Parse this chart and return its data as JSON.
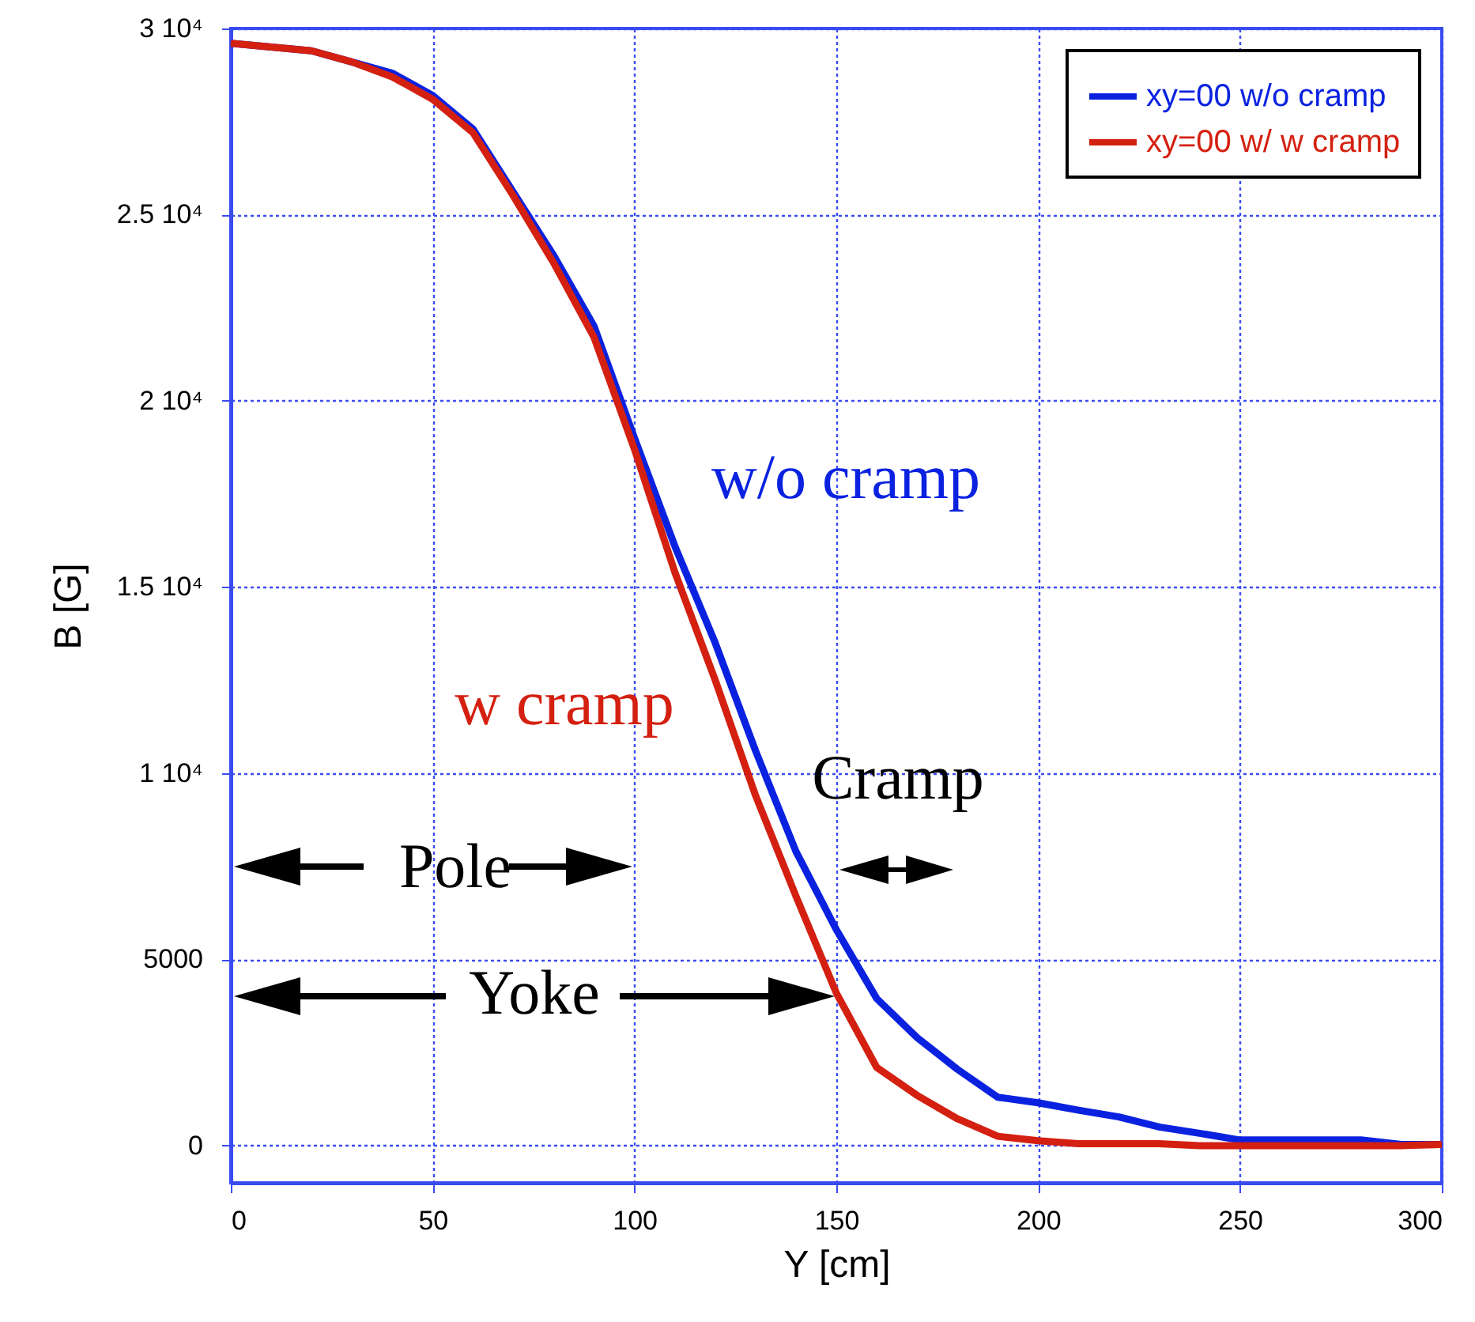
{
  "chart_data": {
    "type": "line",
    "xlabel": "Y [cm]",
    "ylabel": "B [G]",
    "x": [
      0,
      20,
      30,
      40,
      50,
      60,
      70,
      80,
      90,
      100,
      110,
      120,
      130,
      140,
      150,
      160,
      170,
      180,
      190,
      200,
      210,
      220,
      230,
      240,
      250,
      260,
      270,
      280,
      290,
      300
    ],
    "series": [
      {
        "name": "xy=00 w/o cramp",
        "color": "#0a22e0",
        "values": [
          29600,
          29400,
          29100,
          28800,
          28200,
          27300,
          25600,
          23900,
          22000,
          19000,
          16100,
          13500,
          10600,
          7900,
          5800,
          3950,
          2900,
          2050,
          1300,
          1150,
          950,
          770,
          500,
          330,
          150,
          150,
          150,
          150,
          30,
          30
        ]
      },
      {
        "name": "xy=00 w/ w cramp",
        "color": "#d42010",
        "values": [
          29600,
          29400,
          29100,
          28700,
          28100,
          27200,
          25500,
          23700,
          21700,
          18700,
          15400,
          12500,
          9400,
          6700,
          4100,
          2100,
          1350,
          720,
          250,
          130,
          50,
          50,
          50,
          0,
          0,
          0,
          0,
          0,
          0,
          30
        ]
      }
    ],
    "xlim": [
      0,
      300
    ],
    "xticks": [
      0,
      50,
      100,
      150,
      200,
      250,
      300
    ],
    "ylim": [
      -1000,
      30000
    ],
    "yticks": [
      0,
      {
        "value": 5000,
        "label": "5000"
      },
      {
        "value": 10000,
        "label": "1 10⁴"
      },
      {
        "value": 15000,
        "label": "1.5 10⁴"
      },
      {
        "value": 20000,
        "label": "2 10⁴"
      },
      {
        "value": 25000,
        "label": "2.5 10⁴"
      },
      {
        "value": 30000,
        "label": "3 10⁴"
      }
    ],
    "grid": true,
    "legend": "top right",
    "line_style": "solid",
    "marker": "none",
    "annotations": [
      "w/o cramp",
      "w cramp",
      "Cramp",
      "Pole",
      "Yoke"
    ]
  }
}
